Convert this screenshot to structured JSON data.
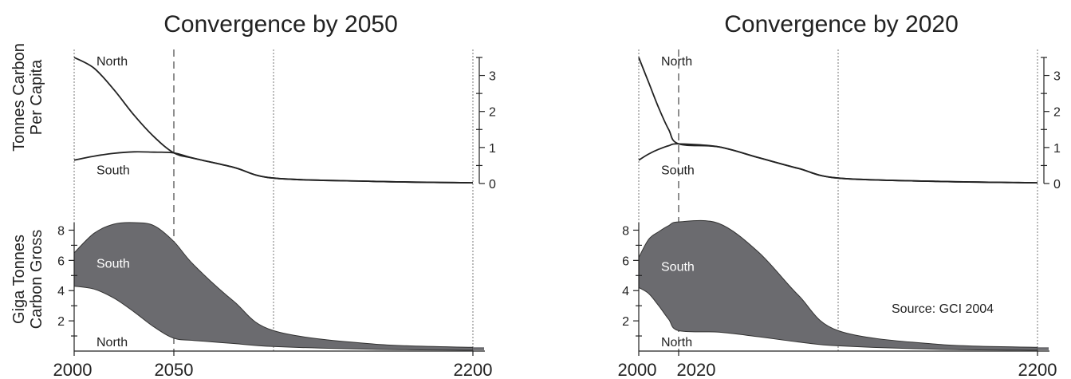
{
  "chart_data": [
    {
      "title": "Convergence by 2050",
      "xlim": [
        2000,
        2200
      ],
      "x_tick_labels": [
        "2000",
        "2050",
        "2200"
      ],
      "convergence_year": 2050,
      "per_capita": {
        "ylabel": [
          "Tonnes Carbon",
          "Per Capita"
        ],
        "ylim": [
          0,
          3.5
        ],
        "y_tick_labels": [
          "0",
          "1",
          "2",
          "3"
        ],
        "type": "line",
        "series": [
          {
            "name": "North",
            "x": [
              2000,
              2010,
              2020,
              2030,
              2040,
              2050,
              2060,
              2080,
              2100,
              2150,
              2200
            ],
            "values": [
              3.5,
              3.2,
              2.6,
              1.9,
              1.3,
              0.85,
              0.7,
              0.45,
              0.15,
              0.06,
              0.02
            ]
          },
          {
            "name": "South",
            "x": [
              2000,
              2010,
              2020,
              2030,
              2040,
              2050,
              2060,
              2080,
              2100,
              2150,
              2200
            ],
            "values": [
              0.65,
              0.76,
              0.84,
              0.88,
              0.87,
              0.85,
              0.7,
              0.45,
              0.15,
              0.06,
              0.02
            ]
          }
        ]
      },
      "gross": {
        "ylabel": [
          "Giga Tonnes",
          "Carbon Gross"
        ],
        "ylim": [
          0,
          8.5
        ],
        "y_tick_labels": [
          "2",
          "4",
          "6",
          "8"
        ],
        "type": "area",
        "series": [
          {
            "name": "North",
            "x": [
              2000,
              2010,
              2020,
              2030,
              2040,
              2050,
              2060,
              2080,
              2100,
              2150,
              2200
            ],
            "values": [
              4.3,
              4.1,
              3.5,
              2.6,
              1.6,
              0.85,
              0.7,
              0.5,
              0.3,
              0.12,
              0.06
            ]
          },
          {
            "name": "South",
            "x": [
              2000,
              2010,
              2020,
              2030,
              2040,
              2050,
              2060,
              2080,
              2100,
              2150,
              2200
            ],
            "values": [
              2.2,
              3.7,
              4.9,
              5.9,
              6.7,
              6.4,
              5.0,
              2.8,
              1.05,
              0.35,
              0.19
            ]
          }
        ]
      }
    },
    {
      "title": "Convergence by 2020",
      "xlim": [
        2000,
        2200
      ],
      "x_tick_labels": [
        "2000",
        "2020",
        "2200"
      ],
      "convergence_year": 2020,
      "per_capita": {
        "ylabel": [],
        "ylim": [
          0,
          3.5
        ],
        "y_tick_labels": [
          "0",
          "1",
          "2",
          "3"
        ],
        "type": "line",
        "series": [
          {
            "name": "North",
            "x": [
              2000,
              2005,
              2010,
              2015,
              2020,
              2040,
              2060,
              2080,
              2100,
              2150,
              2200
            ],
            "values": [
              3.5,
              2.8,
              2.1,
              1.5,
              1.1,
              1.02,
              0.72,
              0.42,
              0.15,
              0.06,
              0.02
            ]
          },
          {
            "name": "South",
            "x": [
              2000,
              2005,
              2010,
              2015,
              2020,
              2040,
              2060,
              2080,
              2100,
              2150,
              2200
            ],
            "values": [
              0.65,
              0.82,
              0.95,
              1.05,
              1.1,
              1.02,
              0.72,
              0.42,
              0.15,
              0.06,
              0.02
            ]
          }
        ]
      },
      "gross": {
        "ylabel": [],
        "ylim": [
          0,
          8.5
        ],
        "y_tick_labels": [
          "2",
          "4",
          "6",
          "8"
        ],
        "type": "area",
        "series": [
          {
            "name": "North",
            "x": [
              2000,
              2005,
              2010,
              2015,
              2020,
              2040,
              2060,
              2080,
              2100,
              2150,
              2200
            ],
            "values": [
              4.2,
              3.8,
              3.0,
              2.1,
              1.35,
              1.25,
              0.95,
              0.6,
              0.35,
              0.12,
              0.06
            ]
          },
          {
            "name": "South",
            "x": [
              2000,
              2005,
              2010,
              2015,
              2020,
              2040,
              2060,
              2080,
              2100,
              2150,
              2200
            ],
            "values": [
              2.0,
              3.6,
              4.9,
              6.2,
              7.2,
              7.2,
              5.6,
              3.1,
              1.0,
              0.33,
              0.19
            ]
          }
        ]
      }
    }
  ],
  "source_note": "Source:  GCI 2004"
}
